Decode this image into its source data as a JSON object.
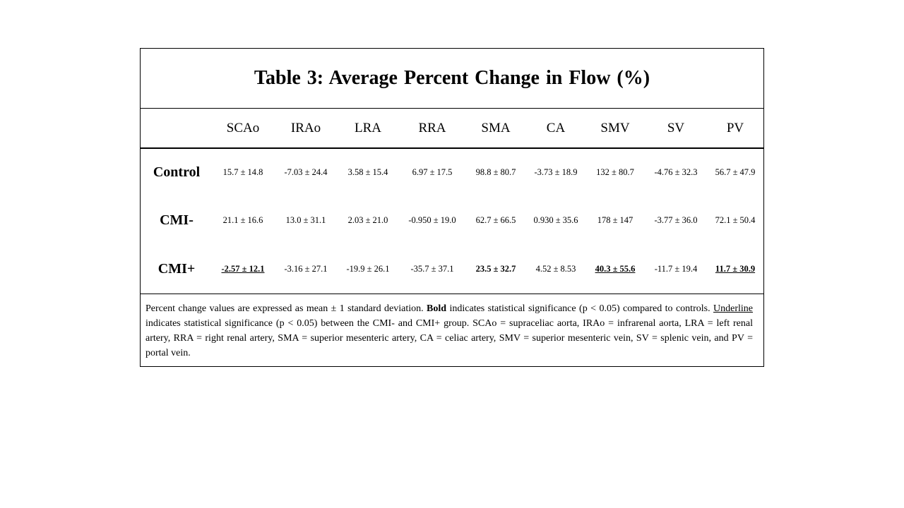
{
  "table": {
    "title": "Table 3:  Average Percent Change in Flow (%)",
    "columns": [
      "SCAo",
      "IRAo",
      "LRA",
      "RRA",
      "SMA",
      "CA",
      "SMV",
      "SV",
      "PV"
    ],
    "rows": [
      {
        "label": "Control",
        "cells": [
          {
            "text": "15.7 ± 14.8",
            "bold": false,
            "underline": false
          },
          {
            "text": "-7.03 ± 24.4",
            "bold": false,
            "underline": false
          },
          {
            "text": "3.58 ± 15.4",
            "bold": false,
            "underline": false
          },
          {
            "text": "6.97 ± 17.5",
            "bold": false,
            "underline": false
          },
          {
            "text": "98.8 ± 80.7",
            "bold": false,
            "underline": false
          },
          {
            "text": "-3.73 ± 18.9",
            "bold": false,
            "underline": false
          },
          {
            "text": "132 ± 80.7",
            "bold": false,
            "underline": false
          },
          {
            "text": "-4.76 ± 32.3",
            "bold": false,
            "underline": false
          },
          {
            "text": "56.7 ± 47.9",
            "bold": false,
            "underline": false
          }
        ]
      },
      {
        "label": "CMI-",
        "cells": [
          {
            "text": "21.1 ± 16.6",
            "bold": false,
            "underline": false
          },
          {
            "text": "13.0 ± 31.1",
            "bold": false,
            "underline": false
          },
          {
            "text": "2.03 ± 21.0",
            "bold": false,
            "underline": false
          },
          {
            "text": "-0.950 ± 19.0",
            "bold": false,
            "underline": false
          },
          {
            "text": "62.7 ± 66.5",
            "bold": false,
            "underline": false
          },
          {
            "text": "0.930 ± 35.6",
            "bold": false,
            "underline": false
          },
          {
            "text": "178 ± 147",
            "bold": false,
            "underline": false
          },
          {
            "text": "-3.77 ± 36.0",
            "bold": false,
            "underline": false
          },
          {
            "text": "72.1 ± 50.4",
            "bold": false,
            "underline": false
          }
        ]
      },
      {
        "label": "CMI+",
        "cells": [
          {
            "text": "-2.57 ± 12.1",
            "bold": true,
            "underline": true
          },
          {
            "text": "-3.16 ± 27.1",
            "bold": false,
            "underline": false
          },
          {
            "text": "-19.9 ± 26.1",
            "bold": false,
            "underline": false
          },
          {
            "text": "-35.7 ± 37.1",
            "bold": false,
            "underline": false
          },
          {
            "text": "23.5 ± 32.7",
            "bold": true,
            "underline": false
          },
          {
            "text": "4.52 ± 8.53",
            "bold": false,
            "underline": false
          },
          {
            "text": "40.3 ± 55.6",
            "bold": true,
            "underline": true
          },
          {
            "text": "-11.7 ± 19.4",
            "bold": false,
            "underline": false
          },
          {
            "text": "11.7 ± 30.9",
            "bold": true,
            "underline": true
          }
        ]
      }
    ]
  },
  "footnote": {
    "part1": "Percent change values are expressed as mean ± 1 standard deviation. ",
    "bold_word": "Bold",
    "part2": " indicates statistical significance (p < 0.05) compared to controls. ",
    "underline_word": "Underline",
    "part3": " indicates statistical significance (p < 0.05) between the CMI- and CMI+ group. SCAo = supraceliac aorta, IRAo = infrarenal aorta, LRA = left renal artery, RRA = right renal artery, SMA = superior mesenteric artery, CA = celiac artery, SMV = superior mesenteric vein, SV = splenic vein, and PV = portal vein."
  }
}
